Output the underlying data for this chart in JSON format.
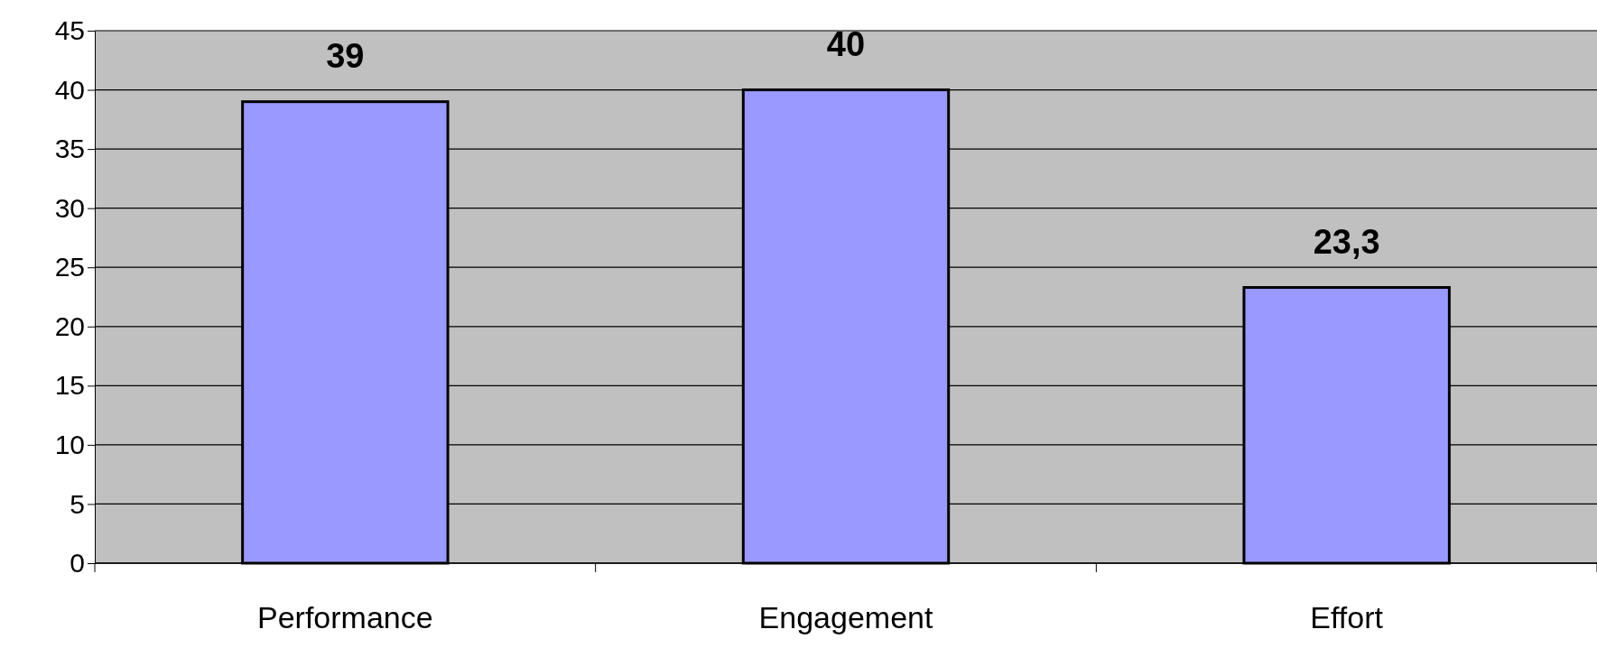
{
  "chart_data": {
    "type": "bar",
    "categories": [
      "Performance",
      "Engagement",
      "Effort"
    ],
    "values": [
      39,
      40,
      23.3
    ],
    "color": "#9999ff",
    "value_labels": [
      "39",
      "40",
      "23,3"
    ],
    "ylim": [
      0,
      45
    ],
    "yticks": [
      0,
      5,
      10,
      15,
      20,
      25,
      30,
      35,
      40,
      45
    ],
    "grid": "y"
  }
}
